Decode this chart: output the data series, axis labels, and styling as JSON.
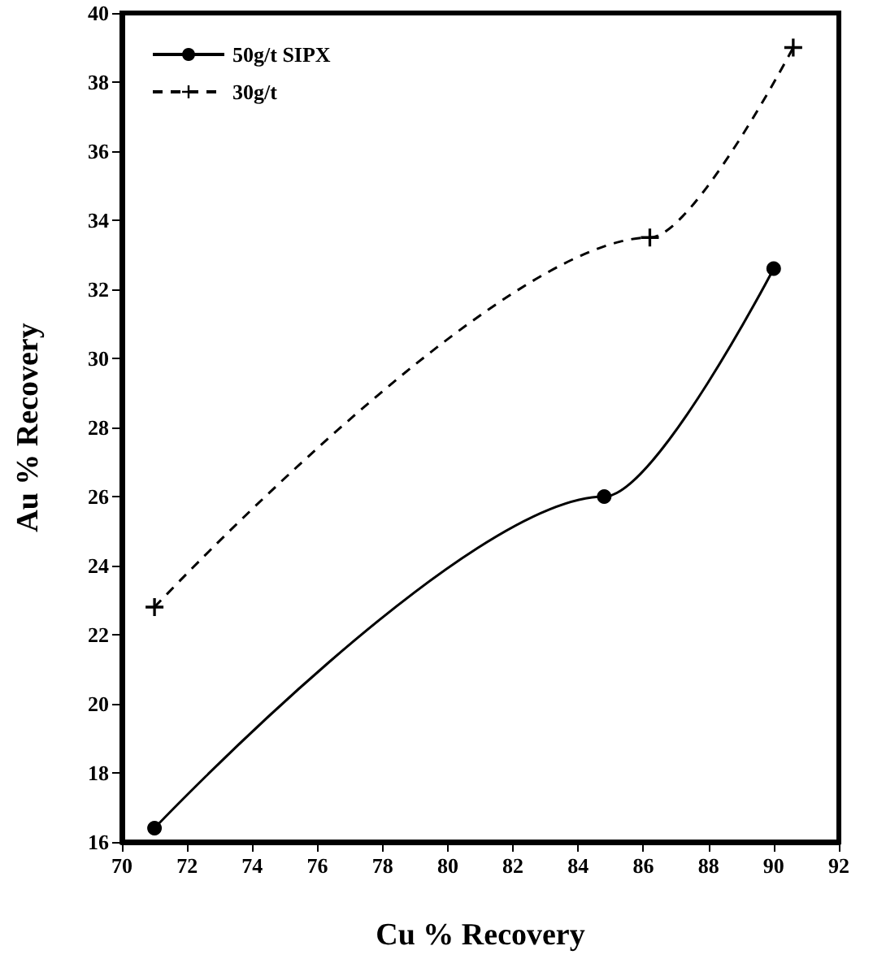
{
  "chart_data": {
    "type": "line",
    "xlabel": "Cu % Recovery",
    "ylabel": "Au % Recovery",
    "xlim": [
      70,
      92
    ],
    "xticks": [
      70,
      72,
      74,
      76,
      78,
      80,
      82,
      84,
      86,
      88,
      90,
      92
    ],
    "ylim": [
      16,
      40
    ],
    "yticks": [
      16,
      18,
      20,
      22,
      24,
      26,
      28,
      30,
      32,
      34,
      36,
      38,
      40
    ],
    "grid": false,
    "legend": "top left",
    "series": [
      {
        "name": "50g/t SIPX",
        "color": "#000000",
        "marker": "circle",
        "line_style": "solid",
        "x": [
          71,
          84.8,
          90
        ],
        "values": [
          16.4,
          26,
          32.6
        ]
      },
      {
        "name": "30g/t",
        "color": "#000000",
        "marker": "cross",
        "line_style": "dashed",
        "x": [
          71,
          86.2,
          90.6
        ],
        "values": [
          22.8,
          33.5,
          39
        ]
      }
    ]
  }
}
